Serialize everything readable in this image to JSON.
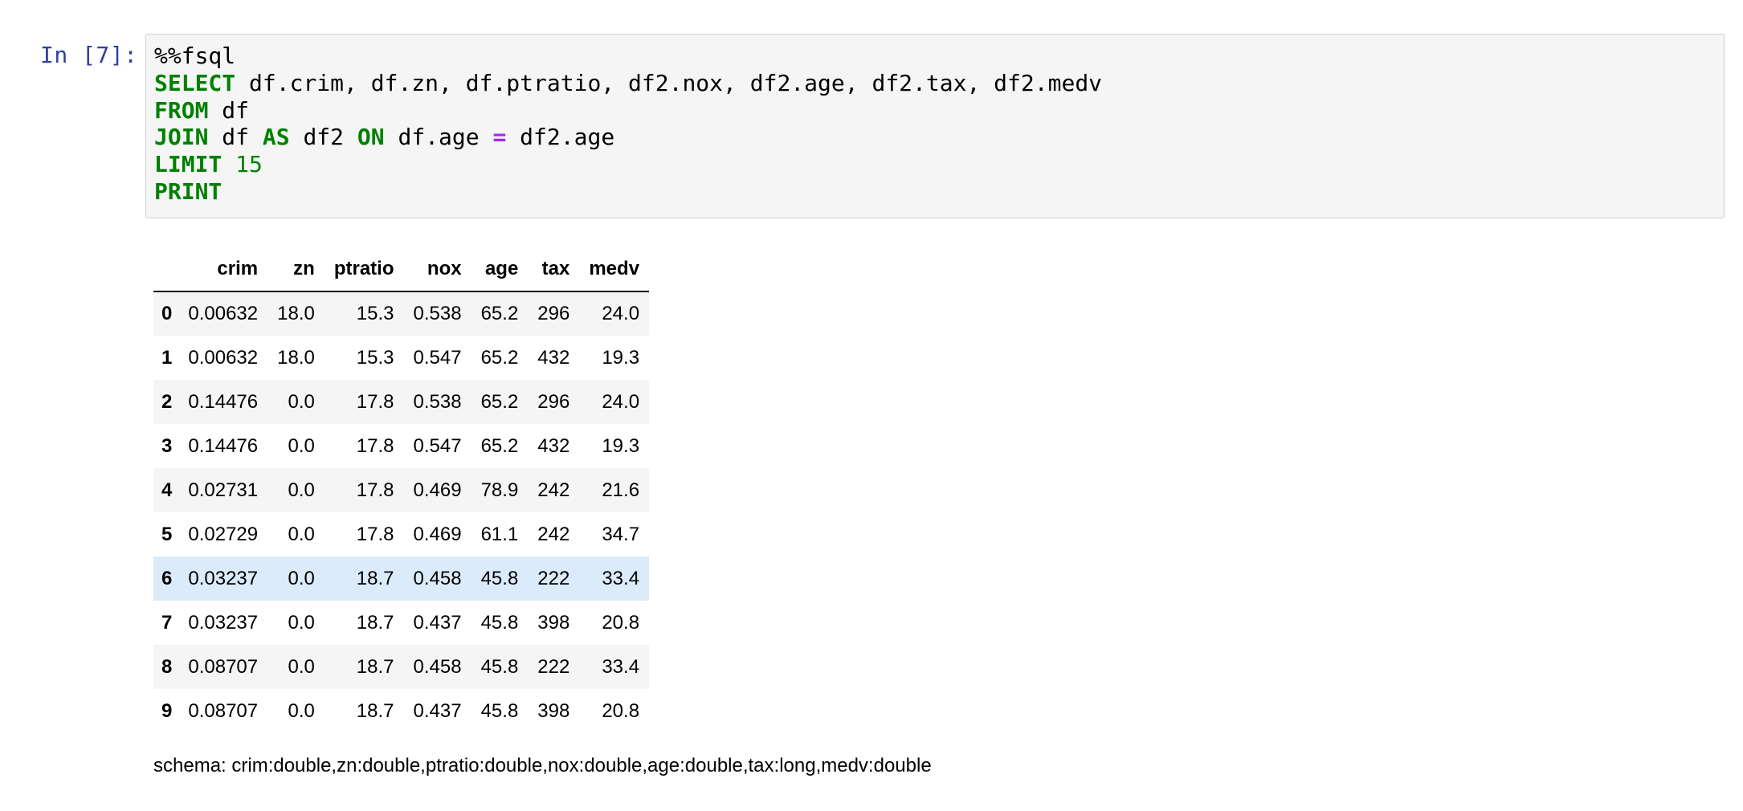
{
  "cell": {
    "prompt": "In [7]:",
    "code_lines": [
      [
        {
          "t": "%%fsql",
          "c": ""
        }
      ],
      [
        {
          "t": "SELECT",
          "c": "kw"
        },
        {
          "t": " df.crim, df.zn, df.ptratio, df2.nox, df2.age, df2.tax, df2.medv",
          "c": ""
        }
      ],
      [
        {
          "t": "FROM",
          "c": "kw"
        },
        {
          "t": " df",
          "c": ""
        }
      ],
      [
        {
          "t": "JOIN",
          "c": "kw"
        },
        {
          "t": " df ",
          "c": ""
        },
        {
          "t": "AS",
          "c": "kw"
        },
        {
          "t": " df2 ",
          "c": ""
        },
        {
          "t": "ON",
          "c": "kw"
        },
        {
          "t": " df.age ",
          "c": ""
        },
        {
          "t": "=",
          "c": "op"
        },
        {
          "t": " df2.age",
          "c": ""
        }
      ],
      [
        {
          "t": "LIMIT",
          "c": "kw"
        },
        {
          "t": " ",
          "c": ""
        },
        {
          "t": "15",
          "c": "num"
        }
      ],
      [
        {
          "t": "PRINT",
          "c": "kw"
        }
      ]
    ]
  },
  "output": {
    "table": {
      "columns": [
        "",
        "crim",
        "zn",
        "ptratio",
        "nox",
        "age",
        "tax",
        "medv"
      ],
      "rows": [
        {
          "index": "0",
          "values": [
            "0.00632",
            "18.0",
            "15.3",
            "0.538",
            "65.2",
            "296",
            "24.0"
          ]
        },
        {
          "index": "1",
          "values": [
            "0.00632",
            "18.0",
            "15.3",
            "0.547",
            "65.2",
            "432",
            "19.3"
          ]
        },
        {
          "index": "2",
          "values": [
            "0.14476",
            "0.0",
            "17.8",
            "0.538",
            "65.2",
            "296",
            "24.0"
          ]
        },
        {
          "index": "3",
          "values": [
            "0.14476",
            "0.0",
            "17.8",
            "0.547",
            "65.2",
            "432",
            "19.3"
          ]
        },
        {
          "index": "4",
          "values": [
            "0.02731",
            "0.0",
            "17.8",
            "0.469",
            "78.9",
            "242",
            "21.6"
          ]
        },
        {
          "index": "5",
          "values": [
            "0.02729",
            "0.0",
            "17.8",
            "0.469",
            "61.1",
            "242",
            "34.7"
          ]
        },
        {
          "index": "6",
          "values": [
            "0.03237",
            "0.0",
            "18.7",
            "0.458",
            "45.8",
            "222",
            "33.4"
          ],
          "highlighted": true
        },
        {
          "index": "7",
          "values": [
            "0.03237",
            "0.0",
            "18.7",
            "0.437",
            "45.8",
            "398",
            "20.8"
          ]
        },
        {
          "index": "8",
          "values": [
            "0.08707",
            "0.0",
            "18.7",
            "0.458",
            "45.8",
            "222",
            "33.4"
          ]
        },
        {
          "index": "9",
          "values": [
            "0.08707",
            "0.0",
            "18.7",
            "0.437",
            "45.8",
            "398",
            "20.8"
          ]
        }
      ]
    },
    "schema": "schema: crim:double,zn:double,ptratio:double,nox:double,age:double,tax:long,medv:double"
  },
  "colors": {
    "prompt": "#303f9f",
    "keyword": "#008000",
    "operator": "#aa22ff",
    "row_stripe": "#f5f5f5",
    "row_hover": "#dcebf9"
  }
}
